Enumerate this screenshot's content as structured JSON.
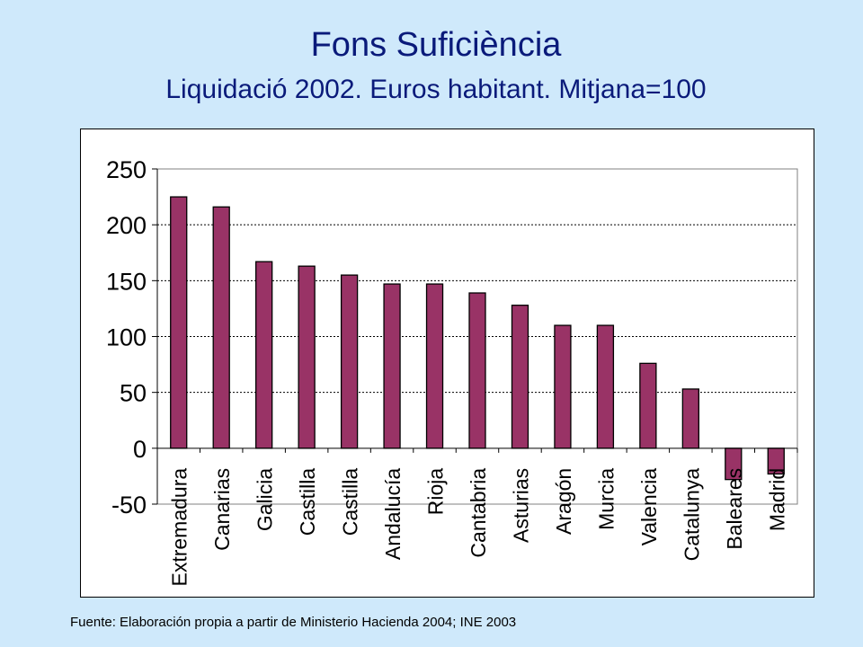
{
  "chart_data": {
    "type": "bar",
    "title": "Fons Suficiència",
    "subtitle": "Liquidació 2002. Euros habitant. Mitjana=100",
    "categories": [
      "Extremadura",
      "Canarias",
      "Galicia",
      "Castilla",
      "Castilla",
      "Andalucía",
      "Rioja",
      "Cantabria",
      "Asturias",
      "Aragón",
      "Murcia",
      "Valencia",
      "Catalunya",
      "Baleares",
      "Madrid"
    ],
    "values": [
      225,
      216,
      167,
      163,
      155,
      147,
      147,
      139,
      128,
      110,
      110,
      76,
      53,
      -28,
      -23
    ],
    "ylim": [
      -50,
      250
    ],
    "yticks": [
      -50,
      0,
      50,
      100,
      150,
      200,
      250
    ],
    "xlabel": "",
    "ylabel": "",
    "grid": true,
    "bar_color": "#993366"
  },
  "footer": {
    "source": "Fuente: Elaboración propia a partir de Ministerio Hacienda 2004; INE 2003"
  }
}
